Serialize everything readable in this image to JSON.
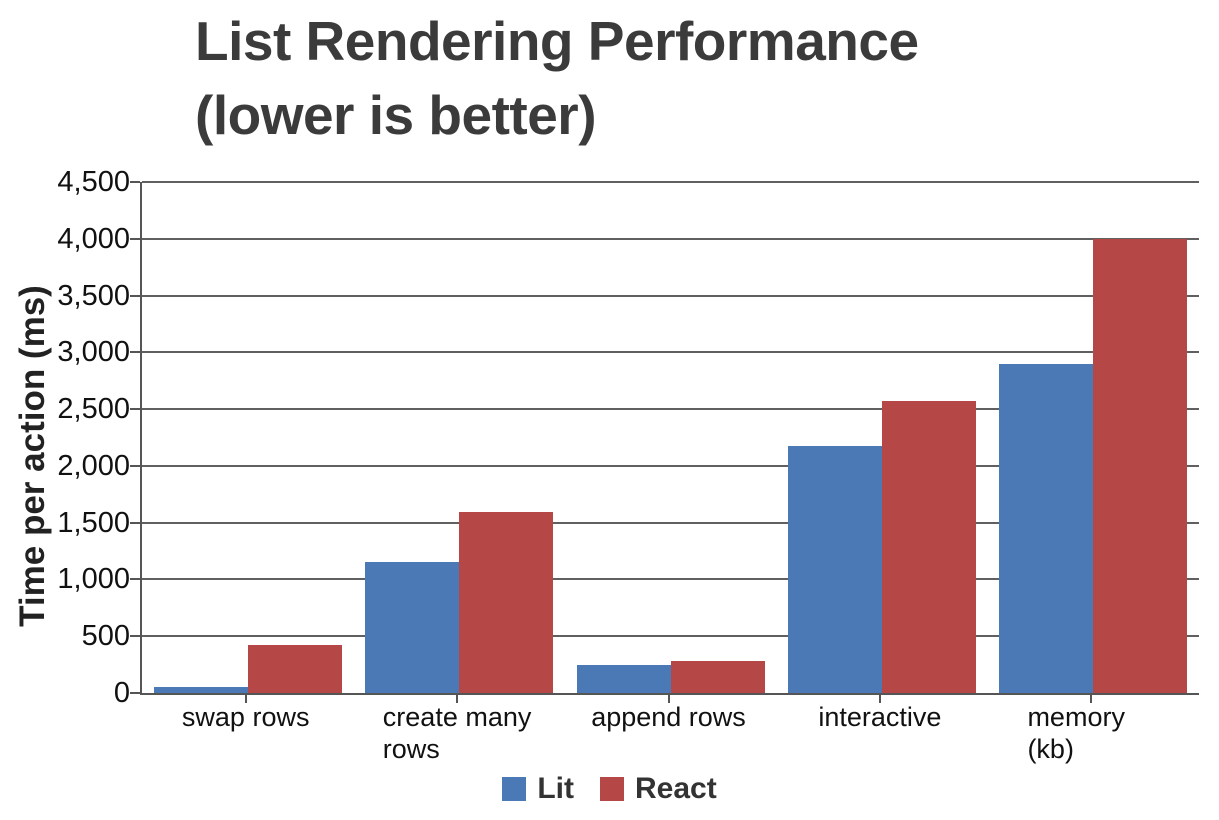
{
  "title": {
    "line1": "List Rendering Performance",
    "line2": "(lower is better)"
  },
  "chart_data": {
    "type": "bar",
    "title": "List Rendering Performance (lower is better)",
    "ylabel": "Time per action (ms)",
    "xlabel": "",
    "categories": [
      "swap rows",
      "create many\nrows",
      "append rows",
      "interactive",
      "memory (kb)"
    ],
    "series": [
      {
        "name": "Lit",
        "color": "#4A79B5",
        "values": [
          55,
          1150,
          250,
          2175,
          2900
        ]
      },
      {
        "name": "React",
        "color": "#B54846",
        "values": [
          420,
          1590,
          280,
          2575,
          4000
        ]
      }
    ],
    "ylim": [
      0,
      4500
    ],
    "ytick_step": 500,
    "ytick_labels": [
      "0",
      "500",
      "1,000",
      "1,500",
      "2,000",
      "2,500",
      "3,000",
      "3,500",
      "4,000",
      "4,500"
    ],
    "grid": true,
    "legend_position": "bottom"
  }
}
